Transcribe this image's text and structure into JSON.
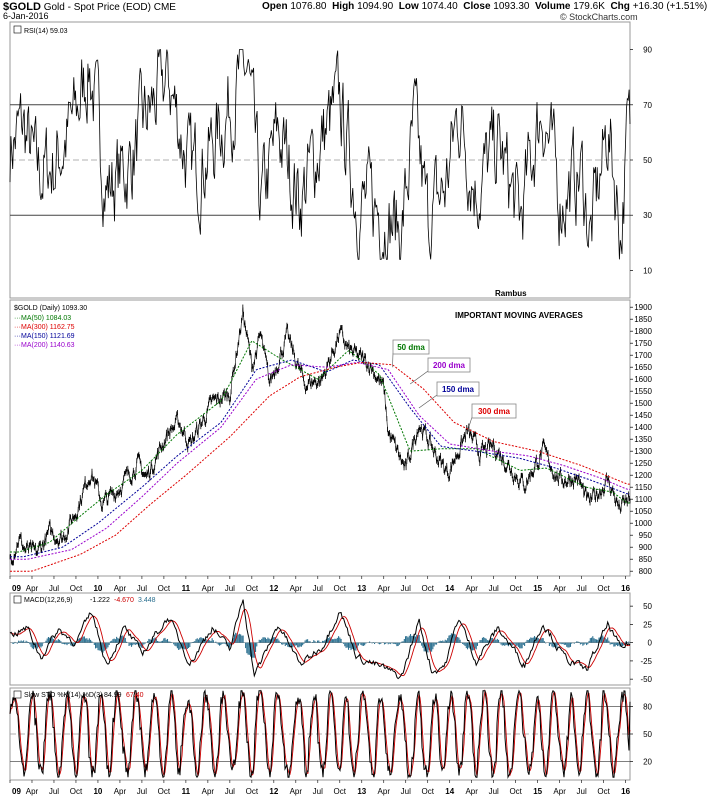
{
  "header": {
    "symbol": "$GOLD",
    "name": "Gold - Spot Price (EOD)",
    "exchange": "CME",
    "date": "6-Jan-2016",
    "open_label": "Open",
    "open": "1076.80",
    "high_label": "High",
    "high": "1094.90",
    "low_label": "Low",
    "low": "1074.40",
    "close_label": "Close",
    "close": "1093.30",
    "volume_label": "Volume",
    "volume": "179.6K",
    "chg_label": "Chg",
    "chg": "+16.30 (+1.51%)",
    "watermark": "© StockCharts.com"
  },
  "colors": {
    "ma50": "#007700",
    "ma300": "#dd0000",
    "ma150": "#000099",
    "ma200": "#9900cc",
    "macd_hist": "#2a6f8f",
    "sto_d": "#cc0000"
  },
  "chart_data": [
    {
      "type": "line",
      "panel": "rsi",
      "title": "RSI(14) 59.03",
      "ylim": [
        0,
        100
      ],
      "yticks": [
        10,
        30,
        50,
        70,
        90
      ],
      "reference_lines": [
        30,
        50,
        70
      ],
      "annotation": "Rambus",
      "series": [
        {
          "name": "RSI(14)",
          "last": 59.03,
          "anchors": [
            [
              2009.0,
              55
            ],
            [
              2009.15,
              62
            ],
            [
              2009.3,
              45
            ],
            [
              2009.5,
              48
            ],
            [
              2009.75,
              66
            ],
            [
              2009.9,
              85
            ],
            [
              2010.1,
              40
            ],
            [
              2010.35,
              48
            ],
            [
              2010.55,
              65
            ],
            [
              2010.8,
              80
            ],
            [
              2011.05,
              45
            ],
            [
              2011.3,
              55
            ],
            [
              2011.6,
              78
            ],
            [
              2011.7,
              83
            ],
            [
              2011.85,
              32
            ],
            [
              2012.05,
              60
            ],
            [
              2012.3,
              36
            ],
            [
              2012.55,
              58
            ],
            [
              2012.75,
              70
            ],
            [
              2012.95,
              35
            ],
            [
              2013.2,
              32
            ],
            [
              2013.45,
              24
            ],
            [
              2013.6,
              62
            ],
            [
              2013.75,
              28
            ],
            [
              2013.95,
              40
            ],
            [
              2014.1,
              68
            ],
            [
              2014.3,
              40
            ],
            [
              2014.55,
              55
            ],
            [
              2014.8,
              28
            ],
            [
              2015.05,
              70
            ],
            [
              2015.25,
              36
            ],
            [
              2015.5,
              45
            ],
            [
              2015.6,
              22
            ],
            [
              2015.8,
              62
            ],
            [
              2015.95,
              24
            ],
            [
              2016.02,
              59
            ]
          ]
        }
      ]
    },
    {
      "type": "line",
      "panel": "price",
      "title": "$GOLD (Daily) 1093.30",
      "subtitle": "IMPORTANT MOVING AVERAGES",
      "ylim": [
        780,
        1930
      ],
      "yticks": [
        800,
        850,
        900,
        950,
        1000,
        1050,
        1100,
        1150,
        1200,
        1250,
        1300,
        1350,
        1400,
        1450,
        1500,
        1550,
        1600,
        1650,
        1700,
        1750,
        1800,
        1850,
        1900
      ],
      "x_ticks": [
        "09",
        "Apr",
        "Jul",
        "Oct",
        "10",
        "Apr",
        "Jul",
        "Oct",
        "11",
        "Apr",
        "Jul",
        "Oct",
        "12",
        "Apr",
        "Jul",
        "Oct",
        "13",
        "Apr",
        "Jul",
        "Oct",
        "14",
        "Apr",
        "Jul",
        "Oct",
        "15",
        "Apr",
        "Jul",
        "Oct",
        "16"
      ],
      "legend": [
        "MA(50) 1084.03",
        "MA(300) 1162.75",
        "MA(150) 1121.69",
        "MA(200) 1140.63"
      ],
      "annotations": [
        "50 dma",
        "200 dma",
        "150 dma",
        "300 dma"
      ],
      "series": [
        {
          "name": "$GOLD",
          "anchors": [
            [
              2009.0,
              850
            ],
            [
              2009.1,
              940
            ],
            [
              2009.17,
              890
            ],
            [
              2009.3,
              870
            ],
            [
              2009.45,
              960
            ],
            [
              2009.6,
              940
            ],
            [
              2009.75,
              1050
            ],
            [
              2009.92,
              1220
            ],
            [
              2010.05,
              1080
            ],
            [
              2010.2,
              1130
            ],
            [
              2010.45,
              1250
            ],
            [
              2010.55,
              1190
            ],
            [
              2010.8,
              1380
            ],
            [
              2010.92,
              1420
            ],
            [
              2011.05,
              1330
            ],
            [
              2011.3,
              1500
            ],
            [
              2011.5,
              1540
            ],
            [
              2011.65,
              1880
            ],
            [
              2011.75,
              1650
            ],
            [
              2011.85,
              1780
            ],
            [
              2011.95,
              1580
            ],
            [
              2012.15,
              1780
            ],
            [
              2012.35,
              1580
            ],
            [
              2012.55,
              1600
            ],
            [
              2012.75,
              1790
            ],
            [
              2012.85,
              1720
            ],
            [
              2013.1,
              1660
            ],
            [
              2013.25,
              1560
            ],
            [
              2013.3,
              1380
            ],
            [
              2013.5,
              1220
            ],
            [
              2013.65,
              1420
            ],
            [
              2013.85,
              1280
            ],
            [
              2013.98,
              1210
            ],
            [
              2014.2,
              1380
            ],
            [
              2014.35,
              1290
            ],
            [
              2014.5,
              1320
            ],
            [
              2014.85,
              1160
            ],
            [
              2015.06,
              1300
            ],
            [
              2015.25,
              1180
            ],
            [
              2015.45,
              1190
            ],
            [
              2015.58,
              1080
            ],
            [
              2015.8,
              1180
            ],
            [
              2015.93,
              1060
            ],
            [
              2016.02,
              1093
            ]
          ]
        },
        {
          "name": "MA(50)",
          "last": 1084.03,
          "anchors": [
            [
              2009.1,
              880
            ],
            [
              2009.45,
              920
            ],
            [
              2009.8,
              1030
            ],
            [
              2010.1,
              1120
            ],
            [
              2010.5,
              1220
            ],
            [
              2010.9,
              1370
            ],
            [
              2011.4,
              1510
            ],
            [
              2011.75,
              1760
            ],
            [
              2012.1,
              1680
            ],
            [
              2012.5,
              1600
            ],
            [
              2012.85,
              1720
            ],
            [
              2013.2,
              1620
            ],
            [
              2013.55,
              1300
            ],
            [
              2013.9,
              1310
            ],
            [
              2014.3,
              1310
            ],
            [
              2014.8,
              1220
            ],
            [
              2015.1,
              1230
            ],
            [
              2015.55,
              1150
            ],
            [
              2015.85,
              1130
            ],
            [
              2016.02,
              1084
            ]
          ]
        },
        {
          "name": "MA(150)",
          "last": 1121.69,
          "anchors": [
            [
              2009.15,
              860
            ],
            [
              2009.6,
              900
            ],
            [
              2010.0,
              1000
            ],
            [
              2010.5,
              1150
            ],
            [
              2010.9,
              1280
            ],
            [
              2011.4,
              1420
            ],
            [
              2011.8,
              1640
            ],
            [
              2012.2,
              1680
            ],
            [
              2012.6,
              1630
            ],
            [
              2012.9,
              1680
            ],
            [
              2013.2,
              1660
            ],
            [
              2013.55,
              1480
            ],
            [
              2013.9,
              1320
            ],
            [
              2014.3,
              1300
            ],
            [
              2014.8,
              1270
            ],
            [
              2015.2,
              1230
            ],
            [
              2015.6,
              1180
            ],
            [
              2016.02,
              1122
            ]
          ]
        },
        {
          "name": "MA(200)",
          "last": 1140.63,
          "anchors": [
            [
              2009.2,
              850
            ],
            [
              2009.7,
              890
            ],
            [
              2010.1,
              980
            ],
            [
              2010.5,
              1110
            ],
            [
              2010.9,
              1250
            ],
            [
              2011.4,
              1400
            ],
            [
              2011.8,
              1600
            ],
            [
              2012.2,
              1660
            ],
            [
              2012.6,
              1650
            ],
            [
              2012.95,
              1670
            ],
            [
              2013.3,
              1640
            ],
            [
              2013.65,
              1450
            ],
            [
              2014.0,
              1330
            ],
            [
              2014.5,
              1300
            ],
            [
              2014.9,
              1280
            ],
            [
              2015.3,
              1240
            ],
            [
              2015.7,
              1190
            ],
            [
              2016.02,
              1141
            ]
          ]
        },
        {
          "name": "MA(300)",
          "last": 1162.75,
          "anchors": [
            [
              2009.25,
              800
            ],
            [
              2009.8,
              870
            ],
            [
              2010.2,
              950
            ],
            [
              2010.6,
              1080
            ],
            [
              2011.0,
              1200
            ],
            [
              2011.5,
              1360
            ],
            [
              2011.95,
              1530
            ],
            [
              2012.3,
              1610
            ],
            [
              2012.7,
              1650
            ],
            [
              2013.0,
              1670
            ],
            [
              2013.35,
              1660
            ],
            [
              2013.7,
              1560
            ],
            [
              2014.05,
              1420
            ],
            [
              2014.5,
              1340
            ],
            [
              2015.0,
              1300
            ],
            [
              2015.5,
              1240
            ],
            [
              2016.02,
              1163
            ]
          ]
        }
      ]
    },
    {
      "type": "line",
      "panel": "macd",
      "title": "MACD(12,26,9)",
      "values_text": [
        "-1.222",
        "-4.670",
        "3.448"
      ],
      "ylim": [
        -58,
        68
      ],
      "yticks": [
        -50,
        -25,
        0,
        25,
        50
      ],
      "series": [
        {
          "name": "MACD",
          "last": -1.222,
          "anchors": [
            [
              2009.0,
              10
            ],
            [
              2009.2,
              20
            ],
            [
              2009.35,
              -20
            ],
            [
              2009.55,
              18
            ],
            [
              2009.75,
              0
            ],
            [
              2009.93,
              42
            ],
            [
              2010.1,
              -30
            ],
            [
              2010.3,
              20
            ],
            [
              2010.5,
              -15
            ],
            [
              2010.8,
              35
            ],
            [
              2011.05,
              -28
            ],
            [
              2011.3,
              22
            ],
            [
              2011.5,
              -10
            ],
            [
              2011.65,
              62
            ],
            [
              2011.78,
              -45
            ],
            [
              2011.9,
              -15
            ],
            [
              2012.05,
              25
            ],
            [
              2012.3,
              -30
            ],
            [
              2012.55,
              -5
            ],
            [
              2012.75,
              45
            ],
            [
              2012.95,
              -20
            ],
            [
              2013.25,
              -35
            ],
            [
              2013.45,
              -48
            ],
            [
              2013.65,
              30
            ],
            [
              2013.8,
              -40
            ],
            [
              2013.95,
              -30
            ],
            [
              2014.1,
              35
            ],
            [
              2014.3,
              -25
            ],
            [
              2014.55,
              20
            ],
            [
              2014.85,
              -30
            ],
            [
              2015.06,
              28
            ],
            [
              2015.3,
              -20
            ],
            [
              2015.55,
              -38
            ],
            [
              2015.8,
              25
            ],
            [
              2015.95,
              -10
            ],
            [
              2016.02,
              -1.2
            ]
          ]
        },
        {
          "name": "Signal",
          "last": -4.67
        },
        {
          "name": "Histogram",
          "last": 3.448
        }
      ]
    },
    {
      "type": "line",
      "panel": "stochastic",
      "title": "Slow STO %K(14) %D(3)",
      "values_text": [
        "84.99",
        "67.40"
      ],
      "ylim": [
        0,
        100
      ],
      "yticks": [
        20,
        50,
        80
      ],
      "series": [
        {
          "name": "%K",
          "last": 84.99
        },
        {
          "name": "%D",
          "last": 67.4
        }
      ]
    }
  ]
}
